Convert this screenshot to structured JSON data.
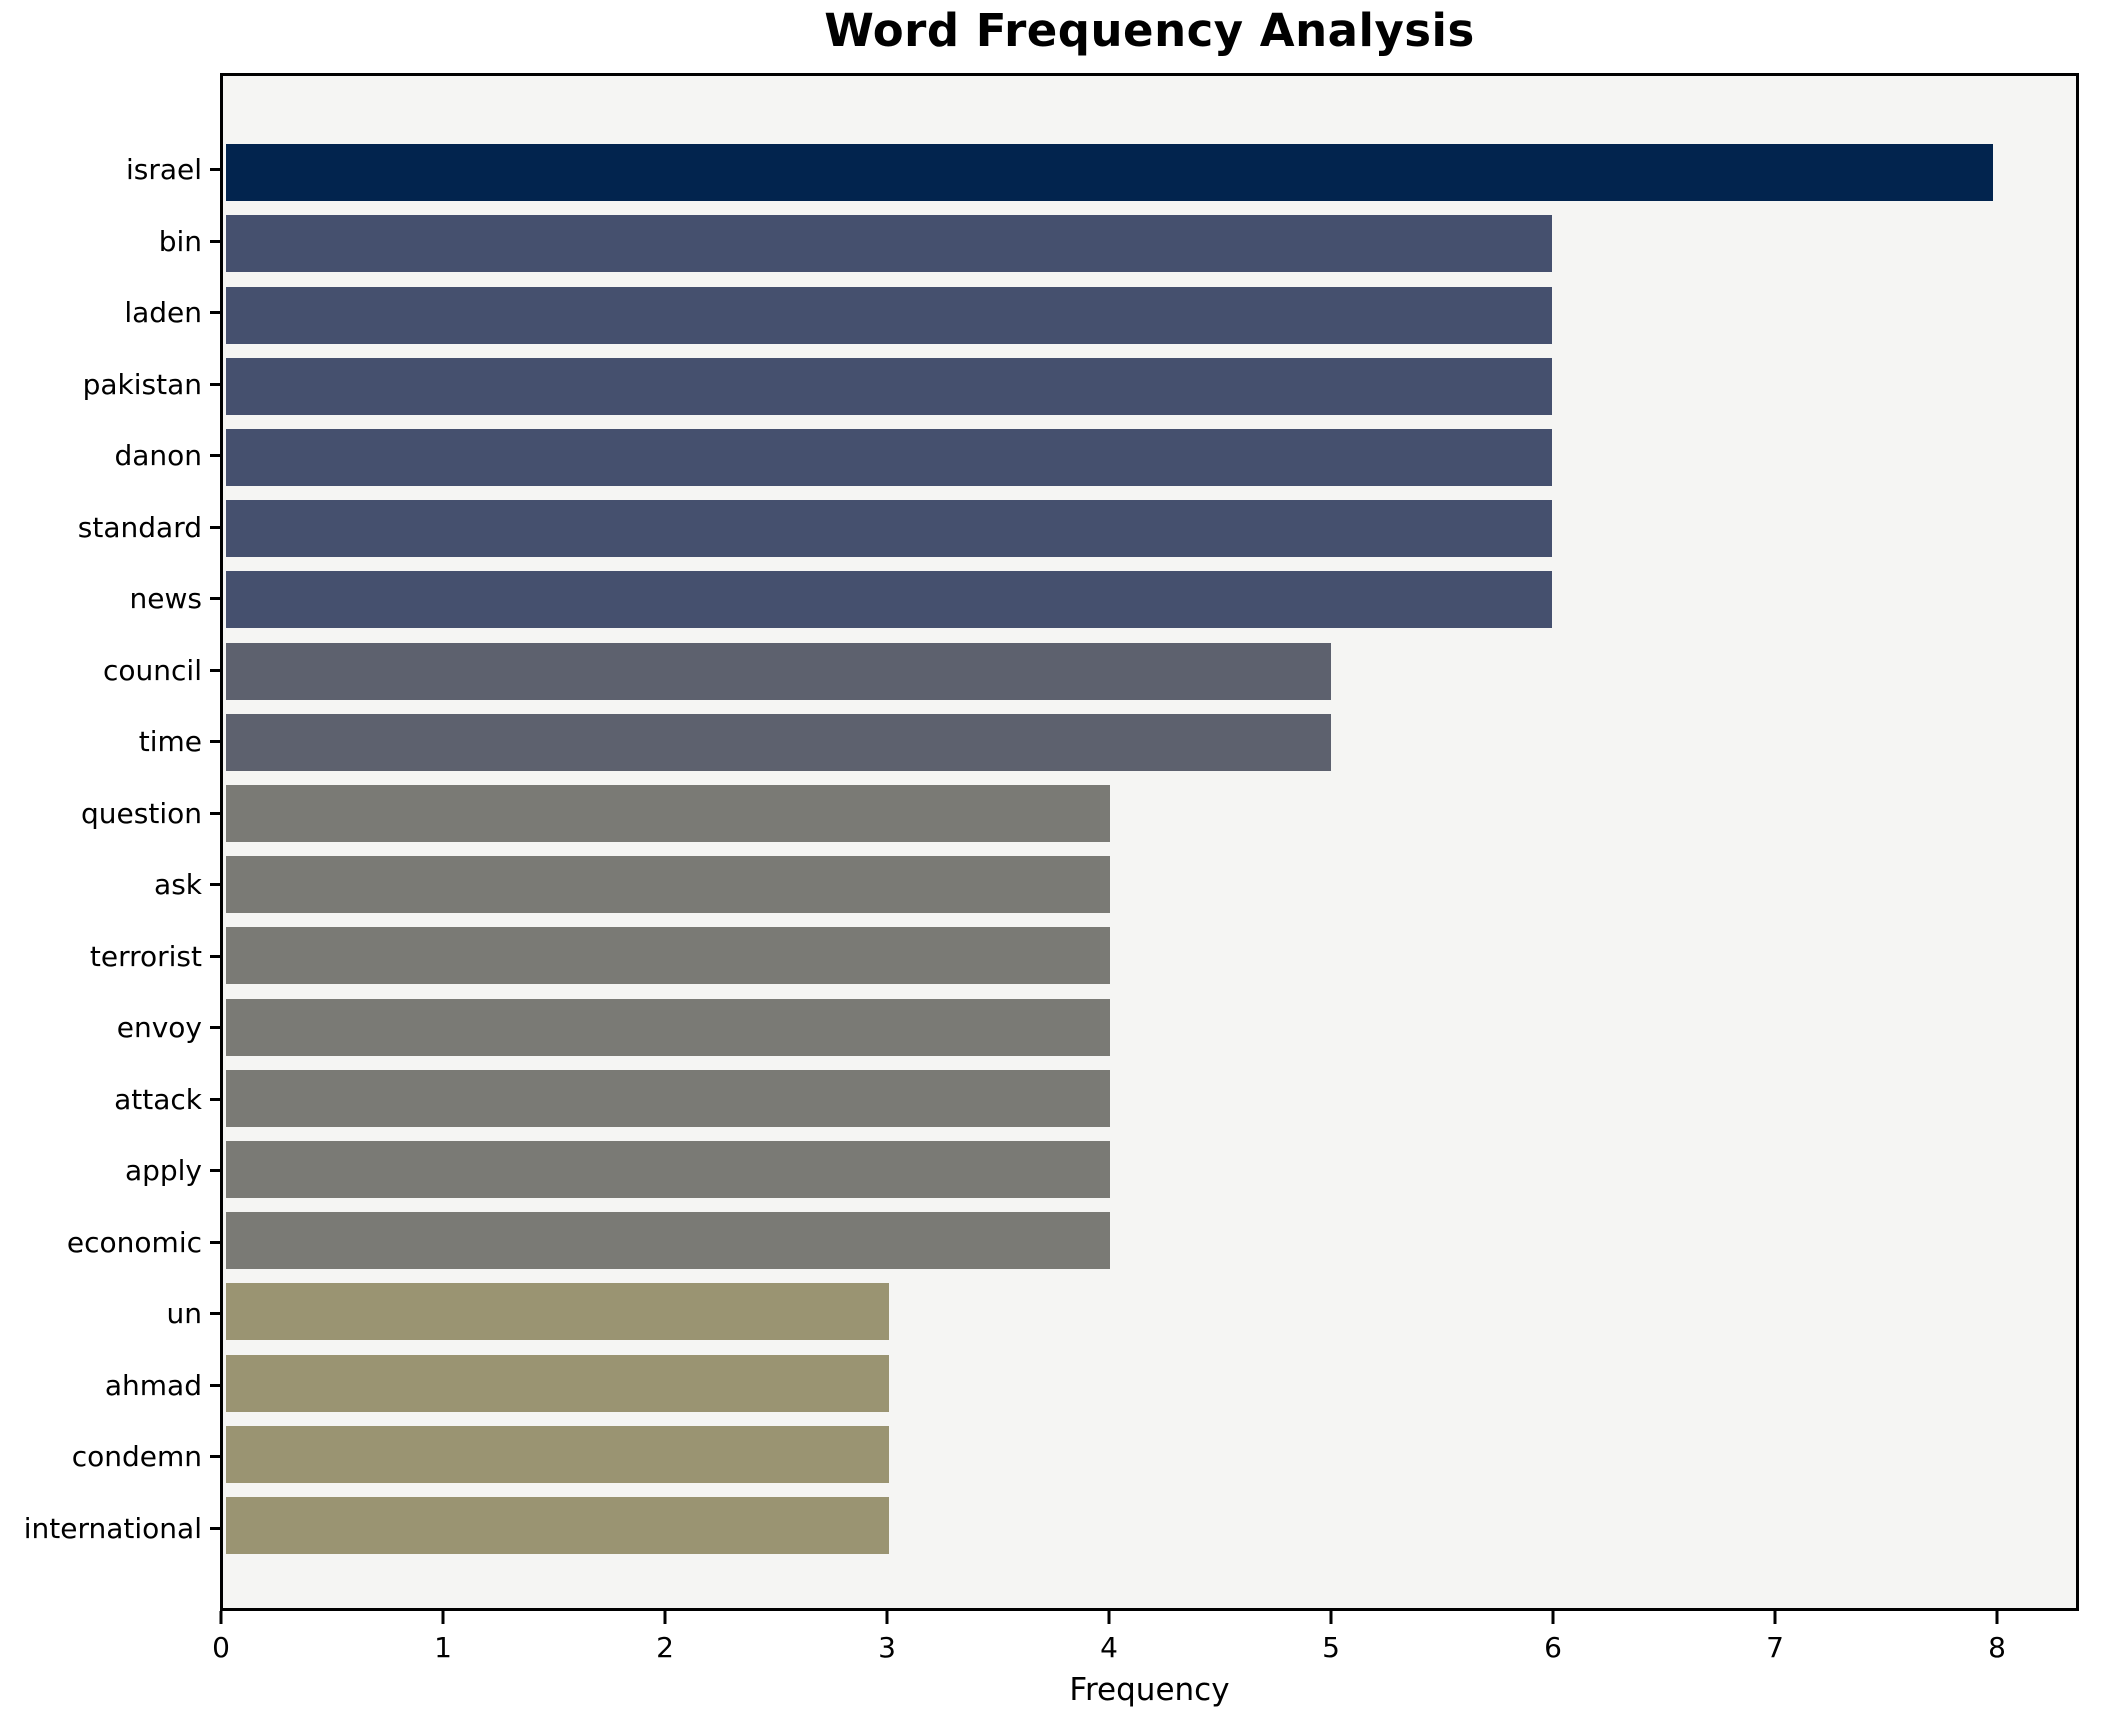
{
  "chart": {
    "title": "Word Frequency Analysis",
    "xlabel": "Frequency"
  },
  "chart_data": {
    "type": "bar",
    "orientation": "horizontal",
    "title": "Word Frequency Analysis",
    "xlabel": "Frequency",
    "ylabel": "",
    "grid": false,
    "legend": false,
    "categories": [
      "israel",
      "bin",
      "laden",
      "pakistan",
      "danon",
      "standard",
      "news",
      "council",
      "time",
      "question",
      "ask",
      "terrorist",
      "envoy",
      "attack",
      "apply",
      "economic",
      "un",
      "ahmad",
      "condemn",
      "international"
    ],
    "values": [
      8,
      6,
      6,
      6,
      6,
      6,
      6,
      5,
      5,
      4,
      4,
      4,
      4,
      4,
      4,
      4,
      3,
      3,
      3,
      3
    ],
    "bar_colors": [
      "#02244e",
      "#45506e",
      "#45506e",
      "#45506e",
      "#45506e",
      "#45506e",
      "#45506e",
      "#5d616e",
      "#5d616e",
      "#7a7a75",
      "#7a7a75",
      "#7a7a75",
      "#7a7a75",
      "#7a7a75",
      "#7a7a75",
      "#7a7a75",
      "#9a9472",
      "#9a9472",
      "#9a9472",
      "#9a9472"
    ],
    "xticks": [
      0,
      1,
      2,
      3,
      4,
      5,
      6,
      7,
      8
    ],
    "xlim": [
      0,
      8.36
    ],
    "colors": {
      "plot_background": "#f5f5f3",
      "figure_background": "#ffffff",
      "value_8": "#02244e",
      "value_6": "#45506e",
      "value_5": "#5d616e",
      "value_4": "#7a7a75",
      "value_3": "#9a9472"
    }
  }
}
